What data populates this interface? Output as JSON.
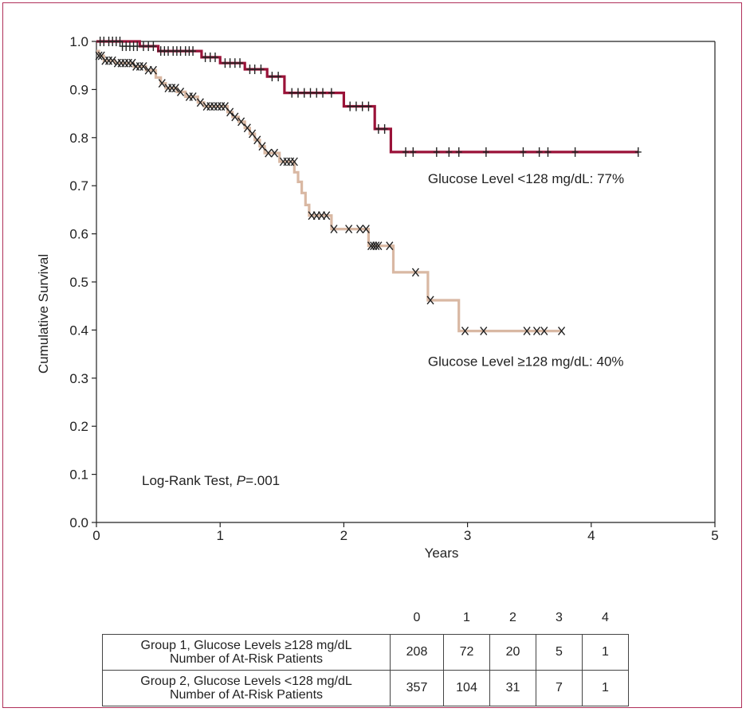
{
  "chart_data": {
    "type": "line",
    "title": "",
    "xlabel": "Years",
    "ylabel": "Cumulative Survival",
    "xlim": [
      0,
      5
    ],
    "ylim": [
      0,
      1
    ],
    "x_ticks": [
      "0",
      "1",
      "2",
      "3",
      "4",
      "5"
    ],
    "y_ticks": [
      "0.0",
      "0.1",
      "0.2",
      "0.3",
      "0.4",
      "0.5",
      "0.6",
      "0.7",
      "0.8",
      "0.9",
      "1.0"
    ],
    "annotation": {
      "text_prefix": "Log-Rank Test, ",
      "p_symbol": "P",
      "p_value": "=.001"
    },
    "series": [
      {
        "name": "Glucose Level <128 mg/dL: 77%",
        "color": "#9a1238",
        "censor_marker": "+",
        "steps": [
          [
            0,
            1.0
          ],
          [
            0.35,
            1.0
          ],
          [
            0.35,
            0.99
          ],
          [
            0.5,
            0.99
          ],
          [
            0.5,
            0.98
          ],
          [
            0.85,
            0.98
          ],
          [
            0.85,
            0.967
          ],
          [
            1.0,
            0.967
          ],
          [
            1.0,
            0.955
          ],
          [
            1.2,
            0.955
          ],
          [
            1.2,
            0.942
          ],
          [
            1.38,
            0.942
          ],
          [
            1.38,
            0.927
          ],
          [
            1.52,
            0.927
          ],
          [
            1.52,
            0.893
          ],
          [
            2.0,
            0.893
          ],
          [
            2.0,
            0.865
          ],
          [
            2.25,
            0.865
          ],
          [
            2.25,
            0.818
          ],
          [
            2.38,
            0.818
          ],
          [
            2.38,
            0.77
          ],
          [
            4.38,
            0.77
          ]
        ],
        "censors": [
          [
            0.03,
            1.0
          ],
          [
            0.06,
            1.0
          ],
          [
            0.1,
            1.0
          ],
          [
            0.13,
            1.0
          ],
          [
            0.16,
            1.0
          ],
          [
            0.19,
            1.0
          ],
          [
            0.21,
            0.99
          ],
          [
            0.24,
            0.99
          ],
          [
            0.27,
            0.99
          ],
          [
            0.3,
            0.99
          ],
          [
            0.33,
            0.99
          ],
          [
            0.38,
            0.99
          ],
          [
            0.42,
            0.99
          ],
          [
            0.46,
            0.99
          ],
          [
            0.52,
            0.98
          ],
          [
            0.55,
            0.98
          ],
          [
            0.58,
            0.98
          ],
          [
            0.62,
            0.98
          ],
          [
            0.65,
            0.98
          ],
          [
            0.68,
            0.98
          ],
          [
            0.72,
            0.98
          ],
          [
            0.75,
            0.98
          ],
          [
            0.78,
            0.98
          ],
          [
            0.88,
            0.967
          ],
          [
            0.92,
            0.967
          ],
          [
            0.96,
            0.967
          ],
          [
            1.04,
            0.955
          ],
          [
            1.08,
            0.955
          ],
          [
            1.12,
            0.955
          ],
          [
            1.16,
            0.955
          ],
          [
            1.24,
            0.942
          ],
          [
            1.28,
            0.942
          ],
          [
            1.33,
            0.942
          ],
          [
            1.42,
            0.927
          ],
          [
            1.47,
            0.927
          ],
          [
            1.58,
            0.893
          ],
          [
            1.63,
            0.893
          ],
          [
            1.68,
            0.893
          ],
          [
            1.73,
            0.893
          ],
          [
            1.78,
            0.893
          ],
          [
            1.83,
            0.893
          ],
          [
            1.9,
            0.893
          ],
          [
            2.05,
            0.865
          ],
          [
            2.1,
            0.865
          ],
          [
            2.15,
            0.865
          ],
          [
            2.2,
            0.865
          ],
          [
            2.28,
            0.818
          ],
          [
            2.33,
            0.818
          ],
          [
            2.5,
            0.77
          ],
          [
            2.56,
            0.77
          ],
          [
            2.75,
            0.77
          ],
          [
            2.85,
            0.77
          ],
          [
            2.93,
            0.77
          ],
          [
            3.15,
            0.77
          ],
          [
            3.45,
            0.77
          ],
          [
            3.58,
            0.77
          ],
          [
            3.65,
            0.77
          ],
          [
            3.87,
            0.77
          ],
          [
            4.38,
            0.77
          ]
        ],
        "label_text": "Glucose Level <128 mg/dL: 77%",
        "label_pos": [
          2.68,
          0.715
        ]
      },
      {
        "name": "Glucose Level ≥128 mg/dL: 40%",
        "color": "#d9b8a3",
        "censor_marker": "X",
        "steps": [
          [
            0,
            0.98
          ],
          [
            0.02,
            0.98
          ],
          [
            0.02,
            0.97
          ],
          [
            0.06,
            0.97
          ],
          [
            0.06,
            0.96
          ],
          [
            0.15,
            0.96
          ],
          [
            0.15,
            0.955
          ],
          [
            0.3,
            0.955
          ],
          [
            0.3,
            0.948
          ],
          [
            0.4,
            0.948
          ],
          [
            0.4,
            0.94
          ],
          [
            0.48,
            0.94
          ],
          [
            0.48,
            0.925
          ],
          [
            0.52,
            0.925
          ],
          [
            0.52,
            0.913
          ],
          [
            0.56,
            0.913
          ],
          [
            0.56,
            0.903
          ],
          [
            0.65,
            0.903
          ],
          [
            0.65,
            0.895
          ],
          [
            0.72,
            0.895
          ],
          [
            0.72,
            0.885
          ],
          [
            0.82,
            0.885
          ],
          [
            0.82,
            0.873
          ],
          [
            0.87,
            0.873
          ],
          [
            0.87,
            0.865
          ],
          [
            1.06,
            0.865
          ],
          [
            1.06,
            0.853
          ],
          [
            1.1,
            0.853
          ],
          [
            1.1,
            0.843
          ],
          [
            1.15,
            0.843
          ],
          [
            1.15,
            0.833
          ],
          [
            1.2,
            0.833
          ],
          [
            1.2,
            0.82
          ],
          [
            1.24,
            0.82
          ],
          [
            1.24,
            0.808
          ],
          [
            1.28,
            0.808
          ],
          [
            1.28,
            0.795
          ],
          [
            1.32,
            0.795
          ],
          [
            1.32,
            0.782
          ],
          [
            1.36,
            0.782
          ],
          [
            1.36,
            0.768
          ],
          [
            1.48,
            0.768
          ],
          [
            1.48,
            0.75
          ],
          [
            1.6,
            0.75
          ],
          [
            1.6,
            0.728
          ],
          [
            1.63,
            0.728
          ],
          [
            1.63,
            0.708
          ],
          [
            1.66,
            0.708
          ],
          [
            1.66,
            0.685
          ],
          [
            1.69,
            0.685
          ],
          [
            1.69,
            0.66
          ],
          [
            1.72,
            0.66
          ],
          [
            1.72,
            0.638
          ],
          [
            1.9,
            0.638
          ],
          [
            1.9,
            0.61
          ],
          [
            2.2,
            0.61
          ],
          [
            2.2,
            0.575
          ],
          [
            2.4,
            0.575
          ],
          [
            2.4,
            0.52
          ],
          [
            2.68,
            0.52
          ],
          [
            2.68,
            0.462
          ],
          [
            2.93,
            0.462
          ],
          [
            2.93,
            0.398
          ],
          [
            3.76,
            0.398
          ]
        ],
        "censors": [
          [
            0.02,
            0.97
          ],
          [
            0.04,
            0.97
          ],
          [
            0.07,
            0.96
          ],
          [
            0.1,
            0.96
          ],
          [
            0.13,
            0.96
          ],
          [
            0.17,
            0.955
          ],
          [
            0.2,
            0.955
          ],
          [
            0.23,
            0.955
          ],
          [
            0.26,
            0.955
          ],
          [
            0.29,
            0.955
          ],
          [
            0.32,
            0.948
          ],
          [
            0.35,
            0.948
          ],
          [
            0.38,
            0.948
          ],
          [
            0.42,
            0.94
          ],
          [
            0.46,
            0.94
          ],
          [
            0.53,
            0.913
          ],
          [
            0.58,
            0.903
          ],
          [
            0.61,
            0.903
          ],
          [
            0.64,
            0.903
          ],
          [
            0.68,
            0.895
          ],
          [
            0.75,
            0.885
          ],
          [
            0.78,
            0.885
          ],
          [
            0.84,
            0.873
          ],
          [
            0.89,
            0.865
          ],
          [
            0.92,
            0.865
          ],
          [
            0.95,
            0.865
          ],
          [
            0.98,
            0.865
          ],
          [
            1.01,
            0.865
          ],
          [
            1.04,
            0.865
          ],
          [
            1.08,
            0.853
          ],
          [
            1.12,
            0.843
          ],
          [
            1.17,
            0.833
          ],
          [
            1.22,
            0.82
          ],
          [
            1.26,
            0.808
          ],
          [
            1.3,
            0.795
          ],
          [
            1.34,
            0.782
          ],
          [
            1.39,
            0.768
          ],
          [
            1.44,
            0.768
          ],
          [
            1.51,
            0.75
          ],
          [
            1.54,
            0.75
          ],
          [
            1.57,
            0.75
          ],
          [
            1.6,
            0.75
          ],
          [
            1.74,
            0.638
          ],
          [
            1.78,
            0.638
          ],
          [
            1.82,
            0.638
          ],
          [
            1.86,
            0.638
          ],
          [
            1.92,
            0.61
          ],
          [
            2.04,
            0.61
          ],
          [
            2.13,
            0.61
          ],
          [
            2.18,
            0.61
          ],
          [
            2.22,
            0.575
          ],
          [
            2.24,
            0.575
          ],
          [
            2.26,
            0.575
          ],
          [
            2.28,
            0.575
          ],
          [
            2.37,
            0.575
          ],
          [
            2.58,
            0.52
          ],
          [
            2.7,
            0.462
          ],
          [
            2.98,
            0.398
          ],
          [
            3.13,
            0.398
          ],
          [
            3.48,
            0.398
          ],
          [
            3.56,
            0.398
          ],
          [
            3.62,
            0.398
          ],
          [
            3.76,
            0.398
          ]
        ],
        "label_text": "Glucose Level ≥128 mg/dL: 40%",
        "label_pos": [
          2.68,
          0.335
        ]
      }
    ]
  },
  "risk_table": {
    "headers": [
      "0",
      "1",
      "2",
      "3",
      "4"
    ],
    "rows": [
      {
        "label_line1": "Group 1, Glucose Levels ≥128 mg/dL",
        "label_line2": "Number of At-Risk Patients",
        "values": [
          "208",
          "72",
          "20",
          "5",
          "1"
        ]
      },
      {
        "label_line1": "Group 2, Glucose Levels <128 mg/dL",
        "label_line2": "Number of At-Risk Patients",
        "values": [
          "357",
          "104",
          "31",
          "7",
          "1"
        ]
      }
    ]
  }
}
